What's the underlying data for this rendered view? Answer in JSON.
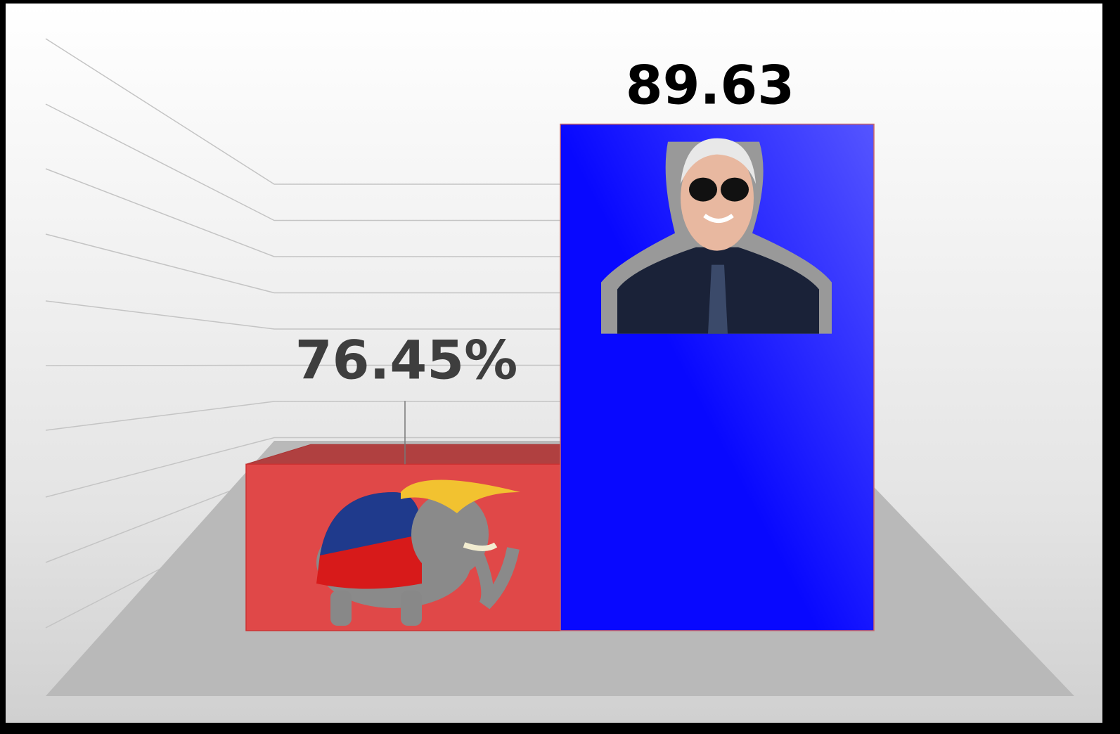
{
  "chart_data": {
    "type": "bar3d",
    "categories": [
      null,
      null
    ],
    "values": [
      76.45,
      89.63
    ],
    "value_labels": [
      "76.45%",
      "89.63"
    ],
    "colors": [
      "#e04848",
      "#0808ff"
    ],
    "ylim": [
      70,
      90
    ]
  }
}
